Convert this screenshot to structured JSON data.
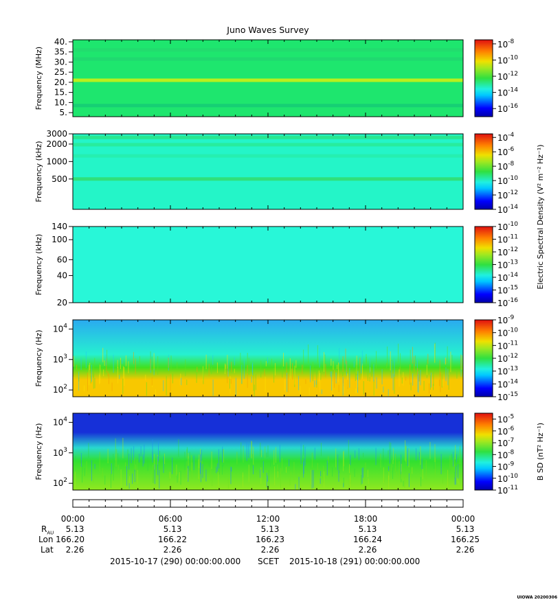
{
  "title": "Juno Waves Survey",
  "time_ticks": [
    "00:00",
    "06:00",
    "12:00",
    "18:00",
    "00:00"
  ],
  "ephemeris": [
    {
      "label": "R",
      "sub": "AU",
      "values": [
        "5.13",
        "5.13",
        "5.13",
        "5.13",
        "5.13"
      ]
    },
    {
      "label": "Lon",
      "values": [
        "166.20",
        "166.22",
        "166.23",
        "166.24",
        "166.25"
      ]
    },
    {
      "label": "Lat",
      "values": [
        "2.26",
        "2.26",
        "2.26",
        "2.26",
        "2.26"
      ]
    }
  ],
  "scet": {
    "start": "2015-10-17 (290) 00:00:00.000",
    "label": "SCET",
    "end": "2015-10-18 (291) 00:00:00.000"
  },
  "stamp": "UIOWA 20200306",
  "electric_colorbar_label": "Electric Spectral Density (V² m⁻² Hz⁻¹)",
  "magnetic_colorbar_label": "B SD (nT² Hz⁻¹)",
  "chart_data": [
    {
      "type": "heatmap",
      "ylabel": "Frequency (MHz)",
      "ytick_labels": [
        "40.",
        "35.",
        "30.",
        "25.",
        "20.",
        "15.",
        "10.",
        "5."
      ],
      "ytick_values": [
        40,
        35,
        30,
        25,
        20,
        15,
        10,
        5
      ],
      "ylim": [
        3,
        41
      ],
      "yscale": "linear",
      "colorbar_ticks": [
        "-8",
        "-10",
        "-12",
        "-14",
        "-16"
      ],
      "colorbar_range": [
        -17,
        -7.5
      ],
      "colors": {
        "background": "#1ee66e"
      },
      "bands": [
        {
          "freq": 21,
          "color": "#b8f01e"
        },
        {
          "freq": 8.5,
          "color": "#16cf74"
        },
        {
          "freq": 31.5,
          "color": "#20d870"
        },
        {
          "freq": 36,
          "color": "#22dc6e"
        }
      ]
    },
    {
      "type": "heatmap",
      "ylabel": "Frequency (kHz)",
      "ytick_labels": [
        "3000",
        "2000",
        "1000",
        "500"
      ],
      "ytick_values": [
        3000,
        2000,
        1000,
        500
      ],
      "ylim": [
        150,
        3000
      ],
      "yscale": "log",
      "colorbar_ticks": [
        "-4",
        "-6",
        "-8",
        "-10",
        "-12",
        "-14"
      ],
      "colorbar_range": [
        -14,
        -3.5
      ],
      "colors": {
        "background": "#24f5c8"
      },
      "bands": [
        {
          "freq": 2600,
          "color": "#2ae690"
        },
        {
          "freq": 1950,
          "color": "#28ec9e"
        },
        {
          "freq": 1250,
          "color": "#26efb0"
        },
        {
          "freq": 500,
          "color": "#30e07a"
        }
      ]
    },
    {
      "type": "heatmap",
      "ylabel": "Frequency (kHz)",
      "ytick_labels": [
        "140",
        "100",
        "60",
        "40",
        "20"
      ],
      "ytick_values": [
        140,
        100,
        60,
        40,
        20
      ],
      "ylim": [
        20,
        140
      ],
      "yscale": "log",
      "colorbar_ticks": [
        "-10",
        "-11",
        "-12",
        "-13",
        "-14",
        "-15",
        "-16"
      ],
      "colorbar_range": [
        -16,
        -10
      ],
      "colors": {
        "background": "#28f7d8"
      },
      "bands": []
    },
    {
      "type": "heatmap",
      "ylabel": "Frequency (Hz)",
      "ytick_labels": [
        "10^4",
        "10^3",
        "10^2"
      ],
      "ytick_values": [
        10000,
        1000,
        100
      ],
      "ylim": [
        60,
        20000
      ],
      "yscale": "log",
      "colorbar_ticks": [
        "-9",
        "-10",
        "-11",
        "-12",
        "-13",
        "-14",
        "-15"
      ],
      "colorbar_range": [
        -15,
        -9
      ],
      "colors": {
        "high": "#2aaaf0",
        "mid": "#26f0d0",
        "green": "#40e020",
        "low": "#f8c800"
      },
      "bands": []
    },
    {
      "type": "heatmap",
      "ylabel": "Frequency (Hz)",
      "ytick_labels": [
        "10^4",
        "10^3",
        "10^2"
      ],
      "ytick_values": [
        10000,
        1000,
        100
      ],
      "ylim": [
        60,
        20000
      ],
      "yscale": "log",
      "colorbar_ticks": [
        "-5",
        "-6",
        "-7",
        "-8",
        "-9",
        "-10",
        "-11"
      ],
      "colorbar_range": [
        -11,
        -4.5
      ],
      "colors": {
        "high": "#1630d8",
        "mid": "#28d8d0",
        "green": "#30e030",
        "low": "#90e820"
      },
      "bands": []
    }
  ]
}
